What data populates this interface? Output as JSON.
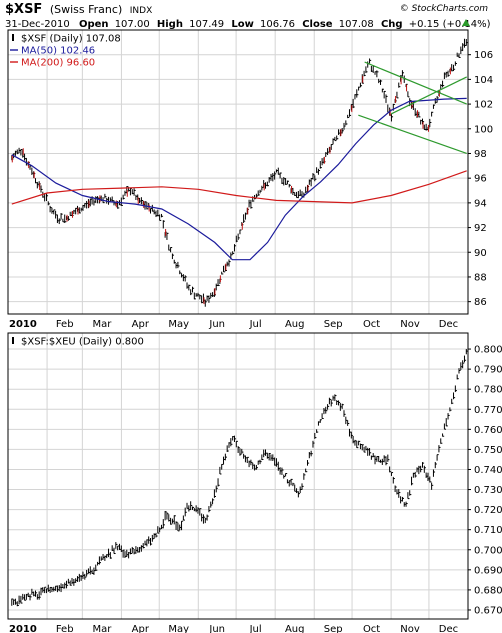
{
  "header": {
    "symbol": "$XSF",
    "name": "(Swiss Franc)",
    "exchange": "INDX",
    "date": "31-Dec-2010",
    "open_label": "Open",
    "open": "107.00",
    "high_label": "High",
    "high": "107.49",
    "low_label": "Low",
    "low": "106.76",
    "close_label": "Close",
    "close": "107.08",
    "chg_label": "Chg",
    "chg": "+0.15 (+0.14%)",
    "copyright": "© StockCharts.com"
  },
  "colors": {
    "price": "#000000",
    "ma50": "#1c1c9c",
    "ma200": "#d11a1a",
    "channel": "#2e9a2e",
    "grid": "#d4d4d4",
    "up_arrow": "#2a9a2a"
  },
  "chart_data": [
    {
      "type": "line",
      "subtype": "ohlc",
      "legend": [
        "$XSF (Daily) 107.08",
        "MA(50) 102.46",
        "MA(200) 96.60"
      ],
      "legend_placement": "top-left",
      "ylim": [
        85,
        108
      ],
      "yticks": [
        86,
        88,
        90,
        92,
        94,
        96,
        98,
        100,
        102,
        104,
        106
      ],
      "ytick_labels": [
        "86",
        "88",
        "90",
        "92",
        "94",
        "96",
        "98",
        "100",
        "102",
        "104",
        "106"
      ],
      "xticks": [
        "2010",
        "Feb",
        "Mar",
        "Apr",
        "May",
        "Jun",
        "Jul",
        "Aug",
        "Sep",
        "Oct",
        "Nov",
        "Dec"
      ],
      "grid": true,
      "series": [
        {
          "name": "$XSF (Daily) 107.08",
          "x": [
            "2010-01-04",
            "2010-01-08",
            "2010-01-12",
            "2010-01-15",
            "2010-01-20",
            "2010-01-25",
            "2010-02-01",
            "2010-02-05",
            "2010-02-10",
            "2010-02-15",
            "2010-02-22",
            "2010-03-01",
            "2010-03-08",
            "2010-03-15",
            "2010-03-22",
            "2010-03-29",
            "2010-04-05",
            "2010-04-09",
            "2010-04-14",
            "2010-04-20",
            "2010-04-26",
            "2010-05-03",
            "2010-05-06",
            "2010-05-11",
            "2010-05-18",
            "2010-05-25",
            "2010-06-01",
            "2010-06-07",
            "2010-06-14",
            "2010-06-21",
            "2010-06-28",
            "2010-07-05",
            "2010-07-12",
            "2010-07-19",
            "2010-07-26",
            "2010-08-02",
            "2010-08-09",
            "2010-08-16",
            "2010-08-23",
            "2010-08-30",
            "2010-09-06",
            "2010-09-13",
            "2010-09-20",
            "2010-09-27",
            "2010-10-04",
            "2010-10-11",
            "2010-10-15",
            "2010-10-20",
            "2010-10-25",
            "2010-11-01",
            "2010-11-05",
            "2010-11-10",
            "2010-11-16",
            "2010-11-22",
            "2010-11-26",
            "2010-11-30",
            "2010-12-06",
            "2010-12-13",
            "2010-12-20",
            "2010-12-27",
            "2010-12-31"
          ],
          "values": [
            97.6,
            98.1,
            98.4,
            97.5,
            96.6,
            95.5,
            94.2,
            93.3,
            92.8,
            92.7,
            93.2,
            93.6,
            94.1,
            94.4,
            94.2,
            93.9,
            94.8,
            95.1,
            94.2,
            93.8,
            93.4,
            92.9,
            91.5,
            89.8,
            88.4,
            87.0,
            86.4,
            86.0,
            86.9,
            88.6,
            89.8,
            92.0,
            94.0,
            95.0,
            95.6,
            96.4,
            95.8,
            94.8,
            94.6,
            95.8,
            97.0,
            98.3,
            99.4,
            100.8,
            102.6,
            104.6,
            105.3,
            104.4,
            103.2,
            101.0,
            102.8,
            104.4,
            102.2,
            101.2,
            100.3,
            100.0,
            102.0,
            104.2,
            105.0,
            106.6,
            107.08
          ]
        },
        {
          "name": "MA(50) 102.46",
          "x": [
            "2010-01-04",
            "2010-01-20",
            "2010-02-08",
            "2010-03-01",
            "2010-03-22",
            "2010-04-12",
            "2010-05-03",
            "2010-05-24",
            "2010-06-14",
            "2010-06-28",
            "2010-07-12",
            "2010-07-26",
            "2010-08-09",
            "2010-08-23",
            "2010-09-06",
            "2010-09-20",
            "2010-10-04",
            "2010-10-18",
            "2010-11-01",
            "2010-11-15",
            "2010-11-29",
            "2010-12-13",
            "2010-12-31"
          ],
          "values": [
            97.9,
            97.0,
            95.6,
            94.6,
            94.1,
            93.9,
            93.5,
            92.3,
            90.8,
            89.4,
            89.4,
            90.8,
            93.0,
            94.5,
            95.7,
            97.1,
            98.8,
            100.3,
            101.5,
            102.2,
            102.3,
            102.4,
            102.46
          ]
        },
        {
          "name": "MA(200) 96.60",
          "x": [
            "2010-01-04",
            "2010-02-01",
            "2010-03-01",
            "2010-04-01",
            "2010-05-03",
            "2010-06-01",
            "2010-07-01",
            "2010-08-02",
            "2010-09-01",
            "2010-10-01",
            "2010-11-01",
            "2010-12-01",
            "2010-12-31"
          ],
          "values": [
            93.9,
            94.8,
            95.1,
            95.2,
            95.3,
            95.1,
            94.6,
            94.2,
            94.1,
            94.0,
            94.6,
            95.5,
            96.6
          ]
        }
      ],
      "annotations": [
        {
          "type": "trendline",
          "x": [
            "2010-10-11",
            "2010-12-31"
          ],
          "values": [
            105.4,
            102.0
          ]
        },
        {
          "type": "trendline",
          "x": [
            "2010-10-06",
            "2010-12-31"
          ],
          "values": [
            101.1,
            98.0
          ]
        },
        {
          "type": "trendline",
          "x": [
            "2010-11-01",
            "2010-12-31"
          ],
          "values": [
            101.2,
            104.2
          ]
        }
      ]
    },
    {
      "type": "line",
      "subtype": "ohlc",
      "legend": [
        "$XSF:$XEU (Daily) 0.800"
      ],
      "legend_placement": "top-left",
      "ylim": [
        0.6655,
        0.808
      ],
      "yticks": [
        0.67,
        0.68,
        0.69,
        0.7,
        0.71,
        0.72,
        0.73,
        0.74,
        0.75,
        0.76,
        0.77,
        0.78,
        0.79,
        0.8
      ],
      "ytick_labels": [
        "0.670",
        "0.680",
        "0.690",
        "0.700",
        "0.710",
        "0.720",
        "0.730",
        "0.740",
        "0.750",
        "0.760",
        "0.770",
        "0.780",
        "0.790",
        "0.800"
      ],
      "xticks": [
        "2010",
        "Feb",
        "Mar",
        "Apr",
        "May",
        "Jun",
        "Jul",
        "Aug",
        "Sep",
        "Oct",
        "Nov",
        "Dec"
      ],
      "grid": true,
      "series": [
        {
          "name": "$XSF:$XEU (Daily) 0.800",
          "x": [
            "2010-01-04",
            "2010-01-11",
            "2010-01-18",
            "2010-01-25",
            "2010-02-01",
            "2010-02-08",
            "2010-02-15",
            "2010-02-22",
            "2010-03-01",
            "2010-03-08",
            "2010-03-15",
            "2010-03-22",
            "2010-03-29",
            "2010-04-05",
            "2010-04-12",
            "2010-04-19",
            "2010-04-26",
            "2010-05-03",
            "2010-05-06",
            "2010-05-12",
            "2010-05-18",
            "2010-05-24",
            "2010-06-01",
            "2010-06-07",
            "2010-06-14",
            "2010-06-21",
            "2010-06-28",
            "2010-07-02",
            "2010-07-09",
            "2010-07-16",
            "2010-07-23",
            "2010-07-30",
            "2010-08-06",
            "2010-08-13",
            "2010-08-20",
            "2010-08-27",
            "2010-09-03",
            "2010-09-10",
            "2010-09-17",
            "2010-09-24",
            "2010-10-01",
            "2010-10-08",
            "2010-10-15",
            "2010-10-22",
            "2010-10-29",
            "2010-11-05",
            "2010-11-12",
            "2010-11-19",
            "2010-11-26",
            "2010-12-03",
            "2010-12-10",
            "2010-12-17",
            "2010-12-24",
            "2010-12-31"
          ],
          "values": [
            0.673,
            0.675,
            0.678,
            0.677,
            0.68,
            0.681,
            0.683,
            0.684,
            0.686,
            0.689,
            0.694,
            0.698,
            0.701,
            0.697,
            0.7,
            0.702,
            0.706,
            0.711,
            0.717,
            0.714,
            0.711,
            0.722,
            0.719,
            0.715,
            0.728,
            0.745,
            0.756,
            0.752,
            0.745,
            0.74,
            0.748,
            0.746,
            0.739,
            0.733,
            0.728,
            0.743,
            0.76,
            0.77,
            0.776,
            0.77,
            0.755,
            0.752,
            0.748,
            0.744,
            0.745,
            0.73,
            0.722,
            0.737,
            0.741,
            0.733,
            0.754,
            0.768,
            0.786,
            0.8
          ]
        }
      ]
    }
  ]
}
